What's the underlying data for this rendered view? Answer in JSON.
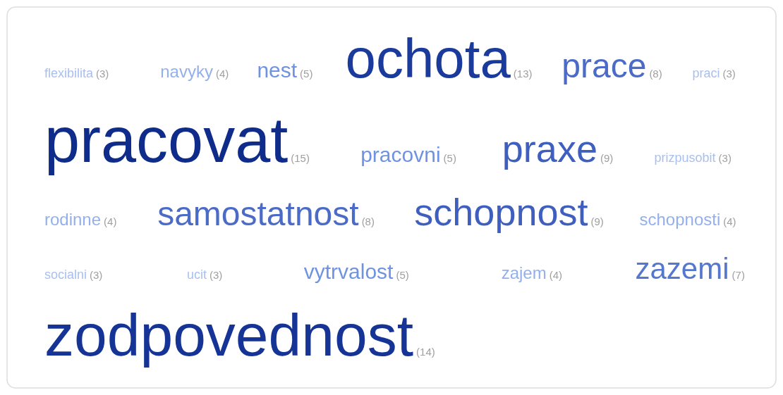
{
  "chart_data": {
    "type": "other",
    "categories": [
      "flexibilita",
      "navyky",
      "nest",
      "ochota",
      "prace",
      "praci",
      "pracovat",
      "pracovni",
      "praxe",
      "prizpusobit",
      "rodinne",
      "samostatnost",
      "schopnost",
      "schopnosti",
      "socialni",
      "ucit",
      "vytrvalost",
      "zajem",
      "zazemi",
      "zodpovednost"
    ],
    "values": [
      3,
      4,
      5,
      13,
      8,
      3,
      15,
      5,
      9,
      3,
      4,
      8,
      9,
      4,
      3,
      3,
      5,
      4,
      7,
      14
    ],
    "value_labels": [
      "(3)",
      "(4)",
      "(5)",
      "(13)",
      "(8)",
      "(3)",
      "(15)",
      "(5)",
      "(9)",
      "(3)",
      "(4)",
      "(8)",
      "(9)",
      "(4)",
      "(3)",
      "(3)",
      "(5)",
      "(4)",
      "(7)",
      "(14)"
    ],
    "colors": [
      "#a8c0f0",
      "#94b0ec",
      "#6f93e0",
      "#1a3a9c",
      "#4b6bc6",
      "#a8c0f0",
      "#0f2c8a",
      "#6f93e0",
      "#3f5fbe",
      "#a8c0f0",
      "#94b0ec",
      "#4b6bc6",
      "#3f5fbe",
      "#94b0ec",
      "#a8c0f0",
      "#a8c0f0",
      "#6f93e0",
      "#94b0ec",
      "#5577cc",
      "#163495"
    ]
  }
}
